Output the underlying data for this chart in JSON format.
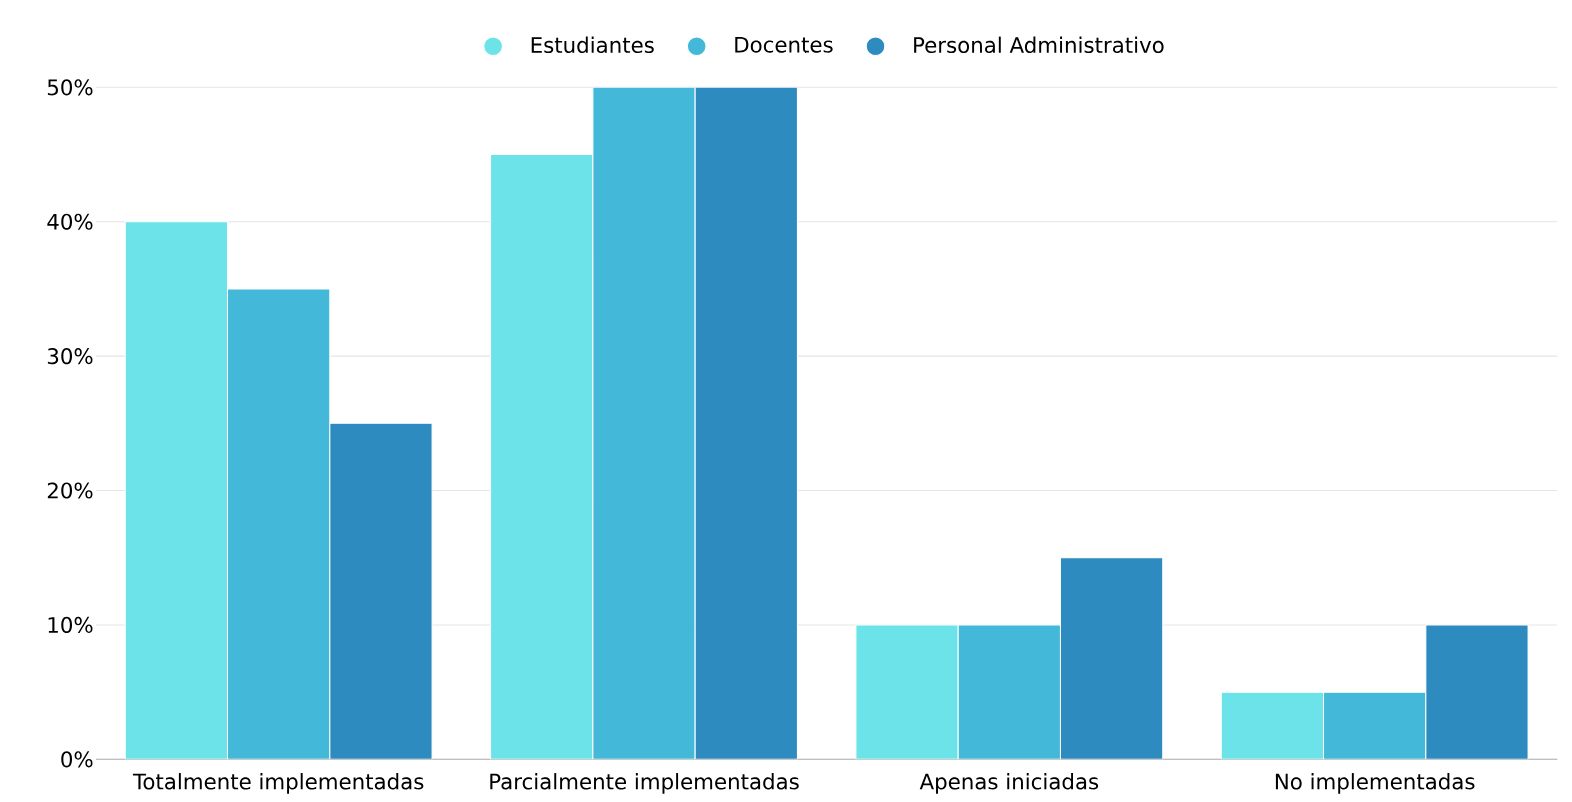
{
  "chart_data": {
    "type": "bar",
    "categories": [
      "Totalmente implementadas",
      "Parcialmente implementadas",
      "Apenas iniciadas",
      "No implementadas"
    ],
    "series": [
      {
        "name": "Estudiantes",
        "color": "#6be3e8",
        "values": [
          40,
          45,
          10,
          5
        ]
      },
      {
        "name": "Docentes",
        "color": "#44b8d8",
        "values": [
          35,
          50,
          10,
          5
        ]
      },
      {
        "name": "Personal Administrativo",
        "color": "#2e8bbf",
        "values": [
          25,
          50,
          15,
          10
        ]
      }
    ],
    "ylim": [
      0,
      50
    ],
    "yticks": [
      {
        "value": 0,
        "label": "0%"
      },
      {
        "value": 10,
        "label": "10%"
      },
      {
        "value": 20,
        "label": "20%"
      },
      {
        "value": 30,
        "label": "30%"
      },
      {
        "value": 40,
        "label": "40%"
      },
      {
        "value": 50,
        "label": "50%"
      }
    ],
    "grid": "y",
    "legend": "top"
  }
}
